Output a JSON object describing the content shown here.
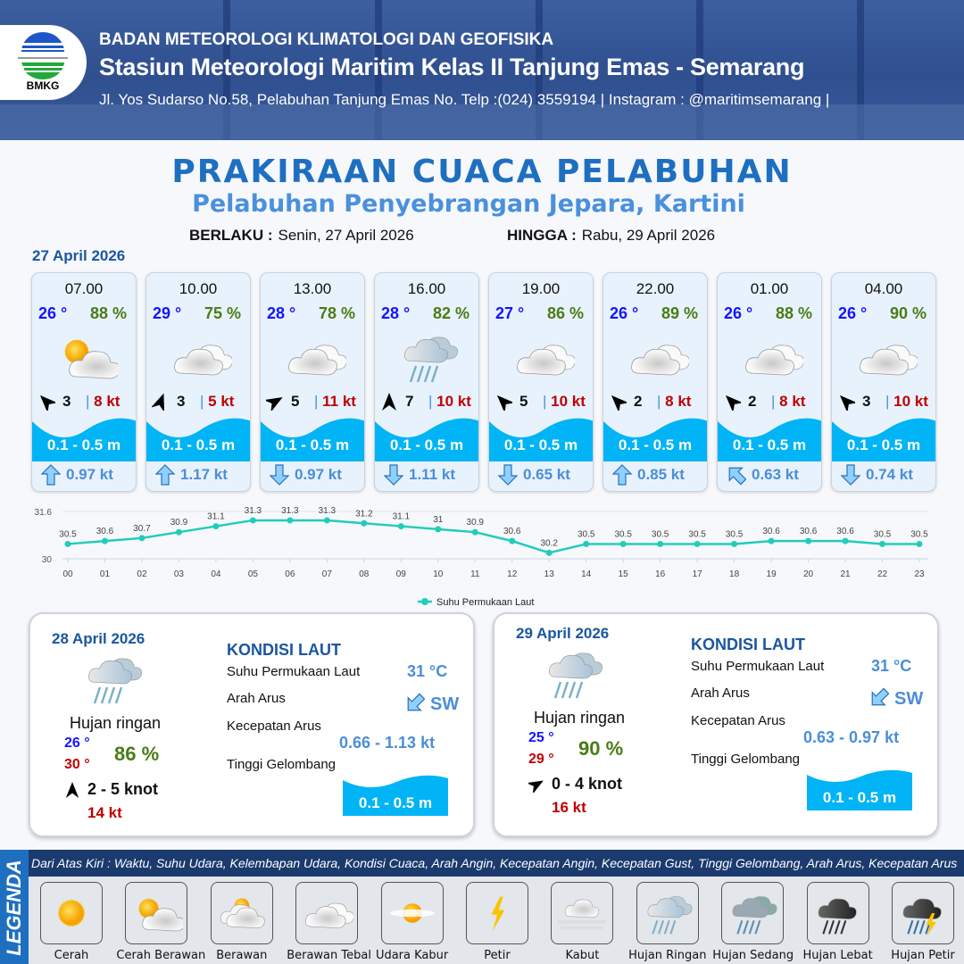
{
  "header": {
    "agency": "BADAN METEOROLOGI KLIMATOLOGI DAN GEOFISIKA",
    "station": "Stasiun Meteorologi Maritim Kelas II Tanjung Emas - Semarang",
    "address": "Jl. Yos Sudarso No.58, Pelabuhan Tanjung Emas No. Telp :(024) 3559194 | Instagram : @maritimsemarang |",
    "logo_text": "BMKG"
  },
  "title": "PRAKIRAAN CUACA PELABUHAN",
  "subtitle": "Pelabuhan Penyebrangan Jepara, Kartini",
  "validity": {
    "from_label": "BERLAKU :",
    "from": "Senin, 27 April 2026",
    "to_label": "HINGGA :",
    "to": "Rabu, 29 April 2026"
  },
  "day1": {
    "date": "27 April 2026",
    "cards": [
      {
        "time": "07.00",
        "temp": "26 °",
        "hum": "88 %",
        "icon": "cerah-berawan",
        "wind_dir_deg": 315,
        "wind": "3",
        "gust": "8 kt",
        "wave": "0.1 - 0.5 m",
        "cur_dir_deg": 0,
        "cur": "0.97 kt"
      },
      {
        "time": "10.00",
        "temp": "29 °",
        "hum": "75 %",
        "icon": "berawan-tebal",
        "wind_dir_deg": 20,
        "wind": "3",
        "gust": "5 kt",
        "wave": "0.1 - 0.5 m",
        "cur_dir_deg": 0,
        "cur": "1.17 kt"
      },
      {
        "time": "13.00",
        "temp": "28 °",
        "hum": "78 %",
        "icon": "berawan-tebal",
        "wind_dir_deg": 60,
        "wind": "5",
        "gust": "11 kt",
        "wave": "0.1 - 0.5 m",
        "cur_dir_deg": 180,
        "cur": "0.97 kt"
      },
      {
        "time": "16.00",
        "temp": "28 °",
        "hum": "82 %",
        "icon": "hujan-ringan",
        "wind_dir_deg": 0,
        "wind": "7",
        "gust": "10 kt",
        "wave": "0.1 - 0.5 m",
        "cur_dir_deg": 180,
        "cur": "1.11 kt"
      },
      {
        "time": "19.00",
        "temp": "27 °",
        "hum": "86 %",
        "icon": "berawan-tebal",
        "wind_dir_deg": 315,
        "wind": "5",
        "gust": "10 kt",
        "wave": "0.1 - 0.5 m",
        "cur_dir_deg": 180,
        "cur": "0.65 kt"
      },
      {
        "time": "22.00",
        "temp": "26 °",
        "hum": "89 %",
        "icon": "berawan-tebal",
        "wind_dir_deg": 315,
        "wind": "2",
        "gust": "8 kt",
        "wave": "0.1 - 0.5 m",
        "cur_dir_deg": 0,
        "cur": "0.85 kt"
      },
      {
        "time": "01.00",
        "temp": "26 °",
        "hum": "88 %",
        "icon": "berawan-tebal",
        "wind_dir_deg": 315,
        "wind": "2",
        "gust": "8 kt",
        "wave": "0.1 - 0.5 m",
        "cur_dir_deg": 315,
        "cur": "0.63 kt"
      },
      {
        "time": "04.00",
        "temp": "26 °",
        "hum": "90 %",
        "icon": "berawan-tebal",
        "wind_dir_deg": 315,
        "wind": "3",
        "gust": "10 kt",
        "wave": "0.1 - 0.5 m",
        "cur_dir_deg": 180,
        "cur": "0.74 kt"
      }
    ]
  },
  "chart_data": {
    "type": "line",
    "title": "",
    "x": [
      "00",
      "01",
      "02",
      "03",
      "04",
      "05",
      "06",
      "07",
      "08",
      "09",
      "10",
      "11",
      "12",
      "13",
      "14",
      "15",
      "16",
      "17",
      "18",
      "19",
      "20",
      "21",
      "22",
      "23"
    ],
    "series": [
      {
        "name": "Suhu Permukaan Laut",
        "values": [
          30.5,
          30.6,
          30.7,
          30.9,
          31.1,
          31.3,
          31.3,
          31.3,
          31.2,
          31.1,
          31.0,
          30.9,
          30.6,
          30.2,
          30.5,
          30.5,
          30.5,
          30.5,
          30.5,
          30.6,
          30.6,
          30.6,
          30.5,
          30.5
        ],
        "color": "#22ccbb"
      }
    ],
    "ylim": [
      30,
      31.6
    ],
    "yticks": [
      "30",
      "31.6"
    ],
    "legend": "bottom-center",
    "grid": true
  },
  "panels": [
    {
      "date": "28 April 2026",
      "icon": "hujan-ringan",
      "cond": "Hujan ringan",
      "tmin": "26 °",
      "tmax": "30 °",
      "hum": "86 %",
      "wind_dir_deg": 0,
      "wind": "2  - 5 knot",
      "gust": "14 kt",
      "sea_title": "KONDISI LAUT",
      "sst_label": "Suhu Permukaan Laut",
      "sst": "31 °C",
      "cur_dir_label": "Arah Arus",
      "cur_dir": "SW",
      "cur_spd_label": "Kecepatan Arus",
      "cur_spd": "0.66  - 1.13 kt",
      "wave_label": "Tinggi Gelombang",
      "wave": "0.1 - 0.5 m"
    },
    {
      "date": "29 April 2026",
      "icon": "hujan-ringan",
      "cond": "Hujan ringan",
      "tmin": "25 °",
      "tmax": "29 °",
      "hum": "90 %",
      "wind_dir_deg": 60,
      "wind": "0  - 4 knot",
      "gust": "16 kt",
      "sea_title": "KONDISI LAUT",
      "sst_label": "Suhu Permukaan Laut",
      "sst": "31 °C",
      "cur_dir_label": "Arah Arus",
      "cur_dir": "SW",
      "cur_spd_label": "Kecepatan Arus",
      "cur_spd": "0.63  - 0.97 kt",
      "wave_label": "Tinggi Gelombang",
      "wave": "0.1 - 0.5 m"
    }
  ],
  "legend": {
    "title": "LEGENDA",
    "description": "Dari Atas Kiri : Waktu, Suhu Udara, Kelembapan Udara, Kondisi Cuaca, Arah Angin, Kecepatan Angin, Kecepatan Gust, Tinggi Gelombang, Arah Arus, Kecepatan Arus",
    "items": [
      {
        "label": "Cerah",
        "icon": "cerah"
      },
      {
        "label": "Cerah Berawan",
        "icon": "cerah-berawan"
      },
      {
        "label": "Berawan",
        "icon": "berawan"
      },
      {
        "label": "Berawan Tebal",
        "icon": "berawan-tebal"
      },
      {
        "label": "Udara Kabur",
        "icon": "udara-kabur"
      },
      {
        "label": "Petir",
        "icon": "petir"
      },
      {
        "label": "Kabut",
        "icon": "kabut"
      },
      {
        "label": "Hujan Ringan",
        "icon": "hujan-ringan"
      },
      {
        "label": "Hujan Sedang",
        "icon": "hujan-sedang"
      },
      {
        "label": "Hujan Lebat",
        "icon": "hujan-lebat"
      },
      {
        "label": "Hujan Petir",
        "icon": "hujan-petir"
      }
    ]
  },
  "colors": {
    "accent": "#1f6fc0",
    "wave": "#00b4f5",
    "temp": "#1414ff",
    "humidity": "#4a7c15",
    "gust": "#c00000",
    "current": "#4a8ed8"
  }
}
